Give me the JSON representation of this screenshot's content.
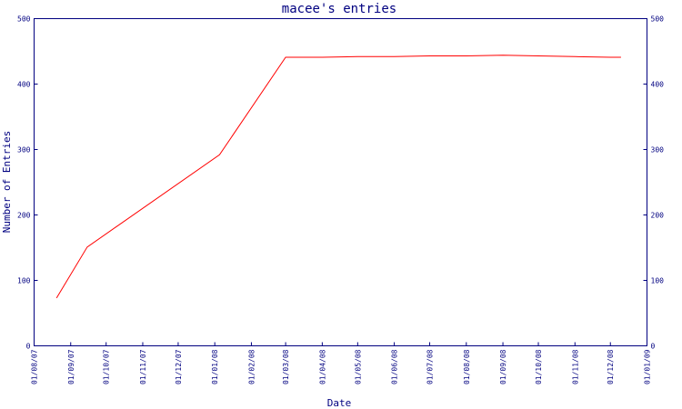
{
  "chart_data": {
    "type": "line",
    "title": "macee's entries",
    "xlabel": "Date",
    "ylabel": "Number of Entries",
    "ylim": [
      0,
      500
    ],
    "y_ticks": [
      "0",
      "100",
      "200",
      "300",
      "400",
      "500"
    ],
    "x_tick_labels": [
      "01/08/07",
      "01/09/07",
      "01/10/07",
      "01/11/07",
      "01/12/07",
      "01/01/08",
      "01/02/08",
      "01/03/08",
      "01/04/08",
      "01/05/08",
      "01/06/08",
      "01/07/08",
      "01/08/08",
      "01/09/08",
      "01/10/08",
      "01/11/08",
      "01/12/08",
      "01/01/09"
    ],
    "grid": false,
    "series": [
      {
        "color": "#ff0000",
        "points": [
          {
            "date": "2007-08-20",
            "value": 73
          },
          {
            "date": "2007-09-15",
            "value": 151
          },
          {
            "date": "2008-01-05",
            "value": 292
          },
          {
            "date": "2008-03-01",
            "value": 441
          },
          {
            "date": "2008-04-01",
            "value": 441
          },
          {
            "date": "2008-05-01",
            "value": 442
          },
          {
            "date": "2008-06-01",
            "value": 442
          },
          {
            "date": "2008-07-01",
            "value": 443
          },
          {
            "date": "2008-08-01",
            "value": 443
          },
          {
            "date": "2008-09-01",
            "value": 444
          },
          {
            "date": "2008-10-01",
            "value": 443
          },
          {
            "date": "2008-11-01",
            "value": 442
          },
          {
            "date": "2008-12-01",
            "value": 441
          },
          {
            "date": "2008-12-10",
            "value": 441
          }
        ]
      }
    ],
    "axis_color": "#000080"
  }
}
